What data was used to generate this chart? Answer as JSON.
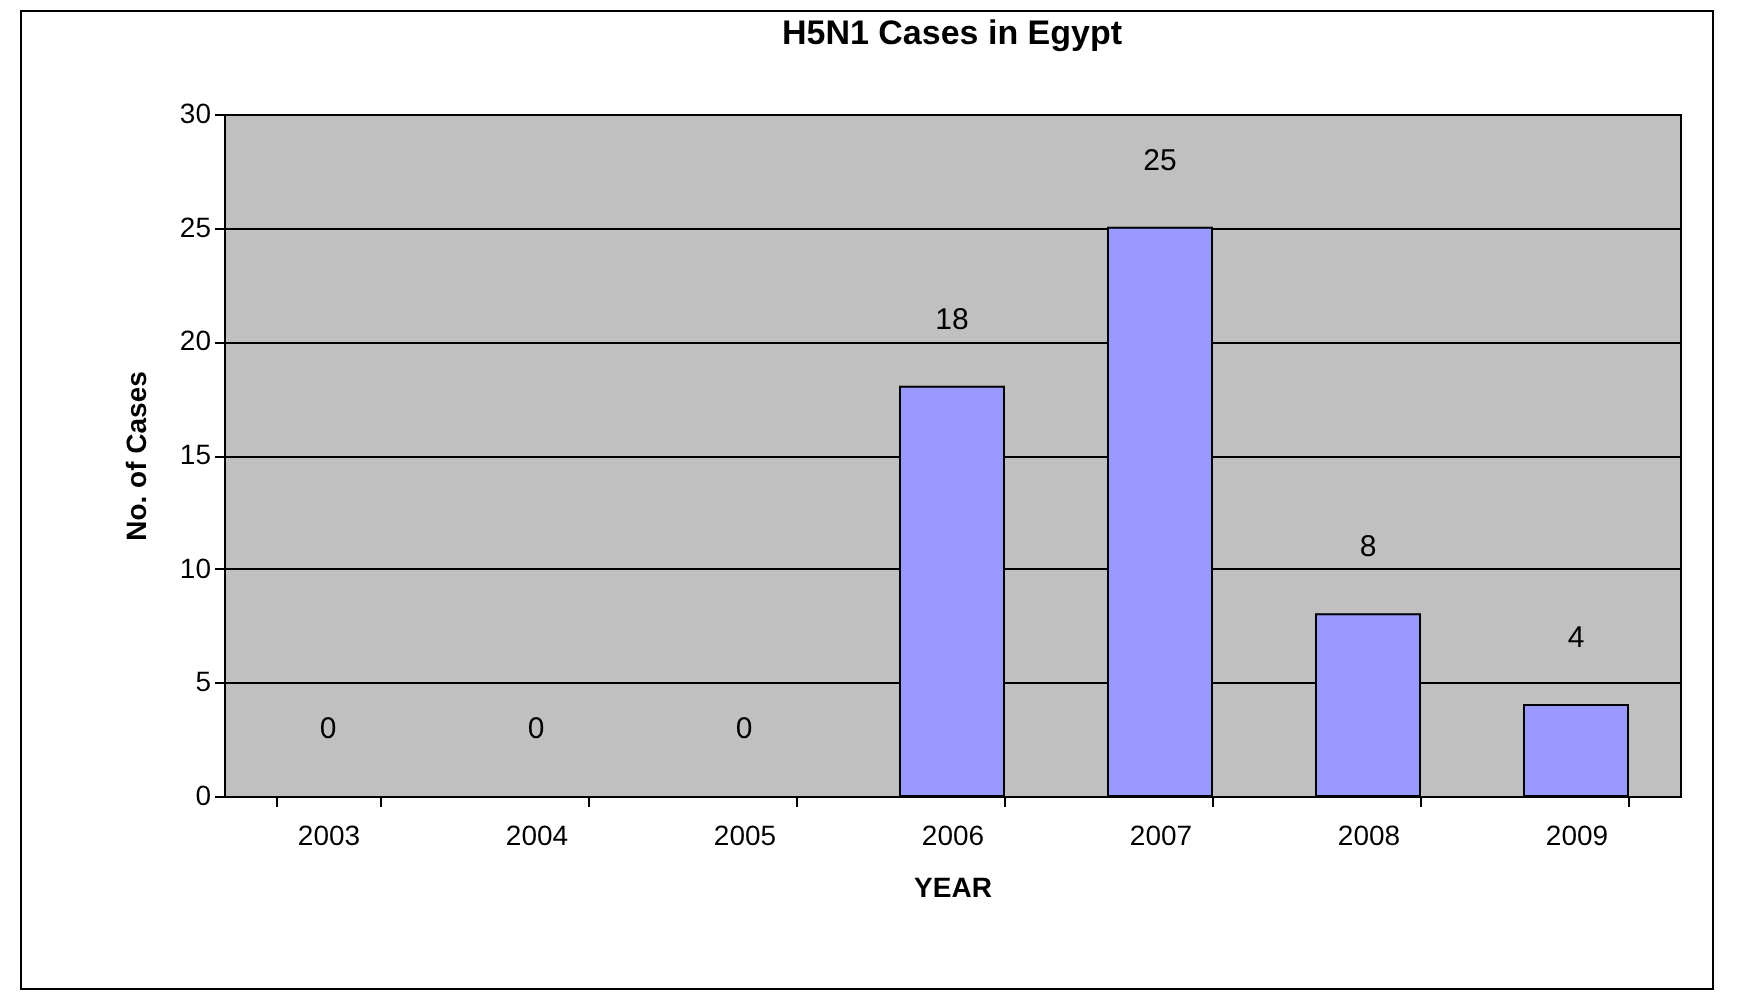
{
  "chart_data": {
    "type": "bar",
    "title": "H5N1 Cases in Egypt",
    "xlabel": "YEAR",
    "ylabel": "No. of Cases",
    "categories": [
      "2003",
      "2004",
      "2005",
      "2006",
      "2007",
      "2008",
      "2009"
    ],
    "values": [
      0,
      0,
      0,
      18,
      25,
      8,
      4
    ],
    "color": "#9999ff",
    "ylim": [
      0,
      30
    ],
    "yticks": [
      0,
      5,
      10,
      15,
      20,
      25,
      30
    ],
    "grid": "y",
    "data_labels": true
  }
}
